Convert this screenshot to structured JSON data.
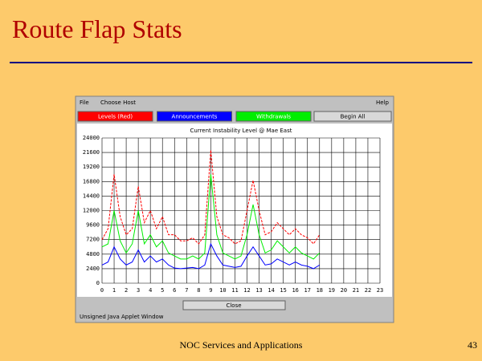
{
  "slide": {
    "title": "Route Flap Stats",
    "footer": "NOC Services and Applications",
    "page_number": "43"
  },
  "window": {
    "menu": [
      "File",
      "Choose Host",
      "Help"
    ],
    "extra_button": "Begin All",
    "close_button": "Close",
    "status": "Unsigned Java Applet Window"
  },
  "chart_data": {
    "type": "line",
    "title": "Current Instability Level @ Mae East",
    "x": [
      0,
      0.5,
      1,
      1.5,
      2,
      2.5,
      3,
      3.5,
      4,
      4.5,
      5,
      5.5,
      6,
      6.5,
      7,
      7.5,
      8,
      8.5,
      9,
      9.5,
      10,
      10.5,
      11,
      11.5,
      12,
      12.5,
      13,
      13.5,
      14,
      14.5,
      15,
      15.5,
      16,
      16.5,
      17,
      17.5,
      18
    ],
    "series": [
      {
        "name": "Levels (Red)",
        "color": "#ff0000",
        "values": [
          7200,
          9000,
          18000,
          11000,
          8000,
          9000,
          16000,
          10000,
          12000,
          9000,
          11000,
          8000,
          8000,
          7000,
          7000,
          7500,
          6500,
          8000,
          22000,
          11000,
          8000,
          7500,
          6500,
          7000,
          12000,
          17000,
          12000,
          8000,
          8500,
          10000,
          9000,
          8000,
          9000,
          8000,
          7500,
          6500,
          8000
        ]
      },
      {
        "name": "Announcements",
        "color": "#0000ff",
        "values": [
          3000,
          3500,
          6000,
          4000,
          3000,
          3500,
          5500,
          3500,
          4500,
          3500,
          4000,
          3000,
          2500,
          2400,
          2500,
          2600,
          2400,
          3000,
          6500,
          4500,
          3000,
          2800,
          2600,
          2800,
          4500,
          6000,
          4500,
          3000,
          3200,
          4000,
          3500,
          3000,
          3500,
          3000,
          2800,
          2400,
          3000
        ]
      },
      {
        "name": "Withdrawals",
        "color": "#00ee00",
        "values": [
          6000,
          6500,
          12000,
          7000,
          5000,
          6500,
          12000,
          6500,
          8000,
          6000,
          7000,
          5000,
          4500,
          4000,
          4000,
          4500,
          4000,
          5000,
          18000,
          8000,
          5000,
          4500,
          4000,
          4500,
          8000,
          13000,
          8000,
          5000,
          5500,
          7000,
          6000,
          5000,
          6000,
          5000,
          4500,
          4000,
          5000
        ]
      }
    ],
    "xlim": [
      0,
      23
    ],
    "xticks": [
      0,
      1,
      2,
      3,
      4,
      5,
      6,
      7,
      8,
      9,
      10,
      11,
      12,
      13,
      14,
      15,
      16,
      17,
      18,
      19,
      20,
      21,
      22,
      23
    ],
    "ylim": [
      0,
      24000
    ],
    "yticks": [
      0,
      2400,
      4800,
      7200,
      9600,
      12000,
      14400,
      16800,
      19200,
      21600,
      24000
    ],
    "grid": true
  }
}
